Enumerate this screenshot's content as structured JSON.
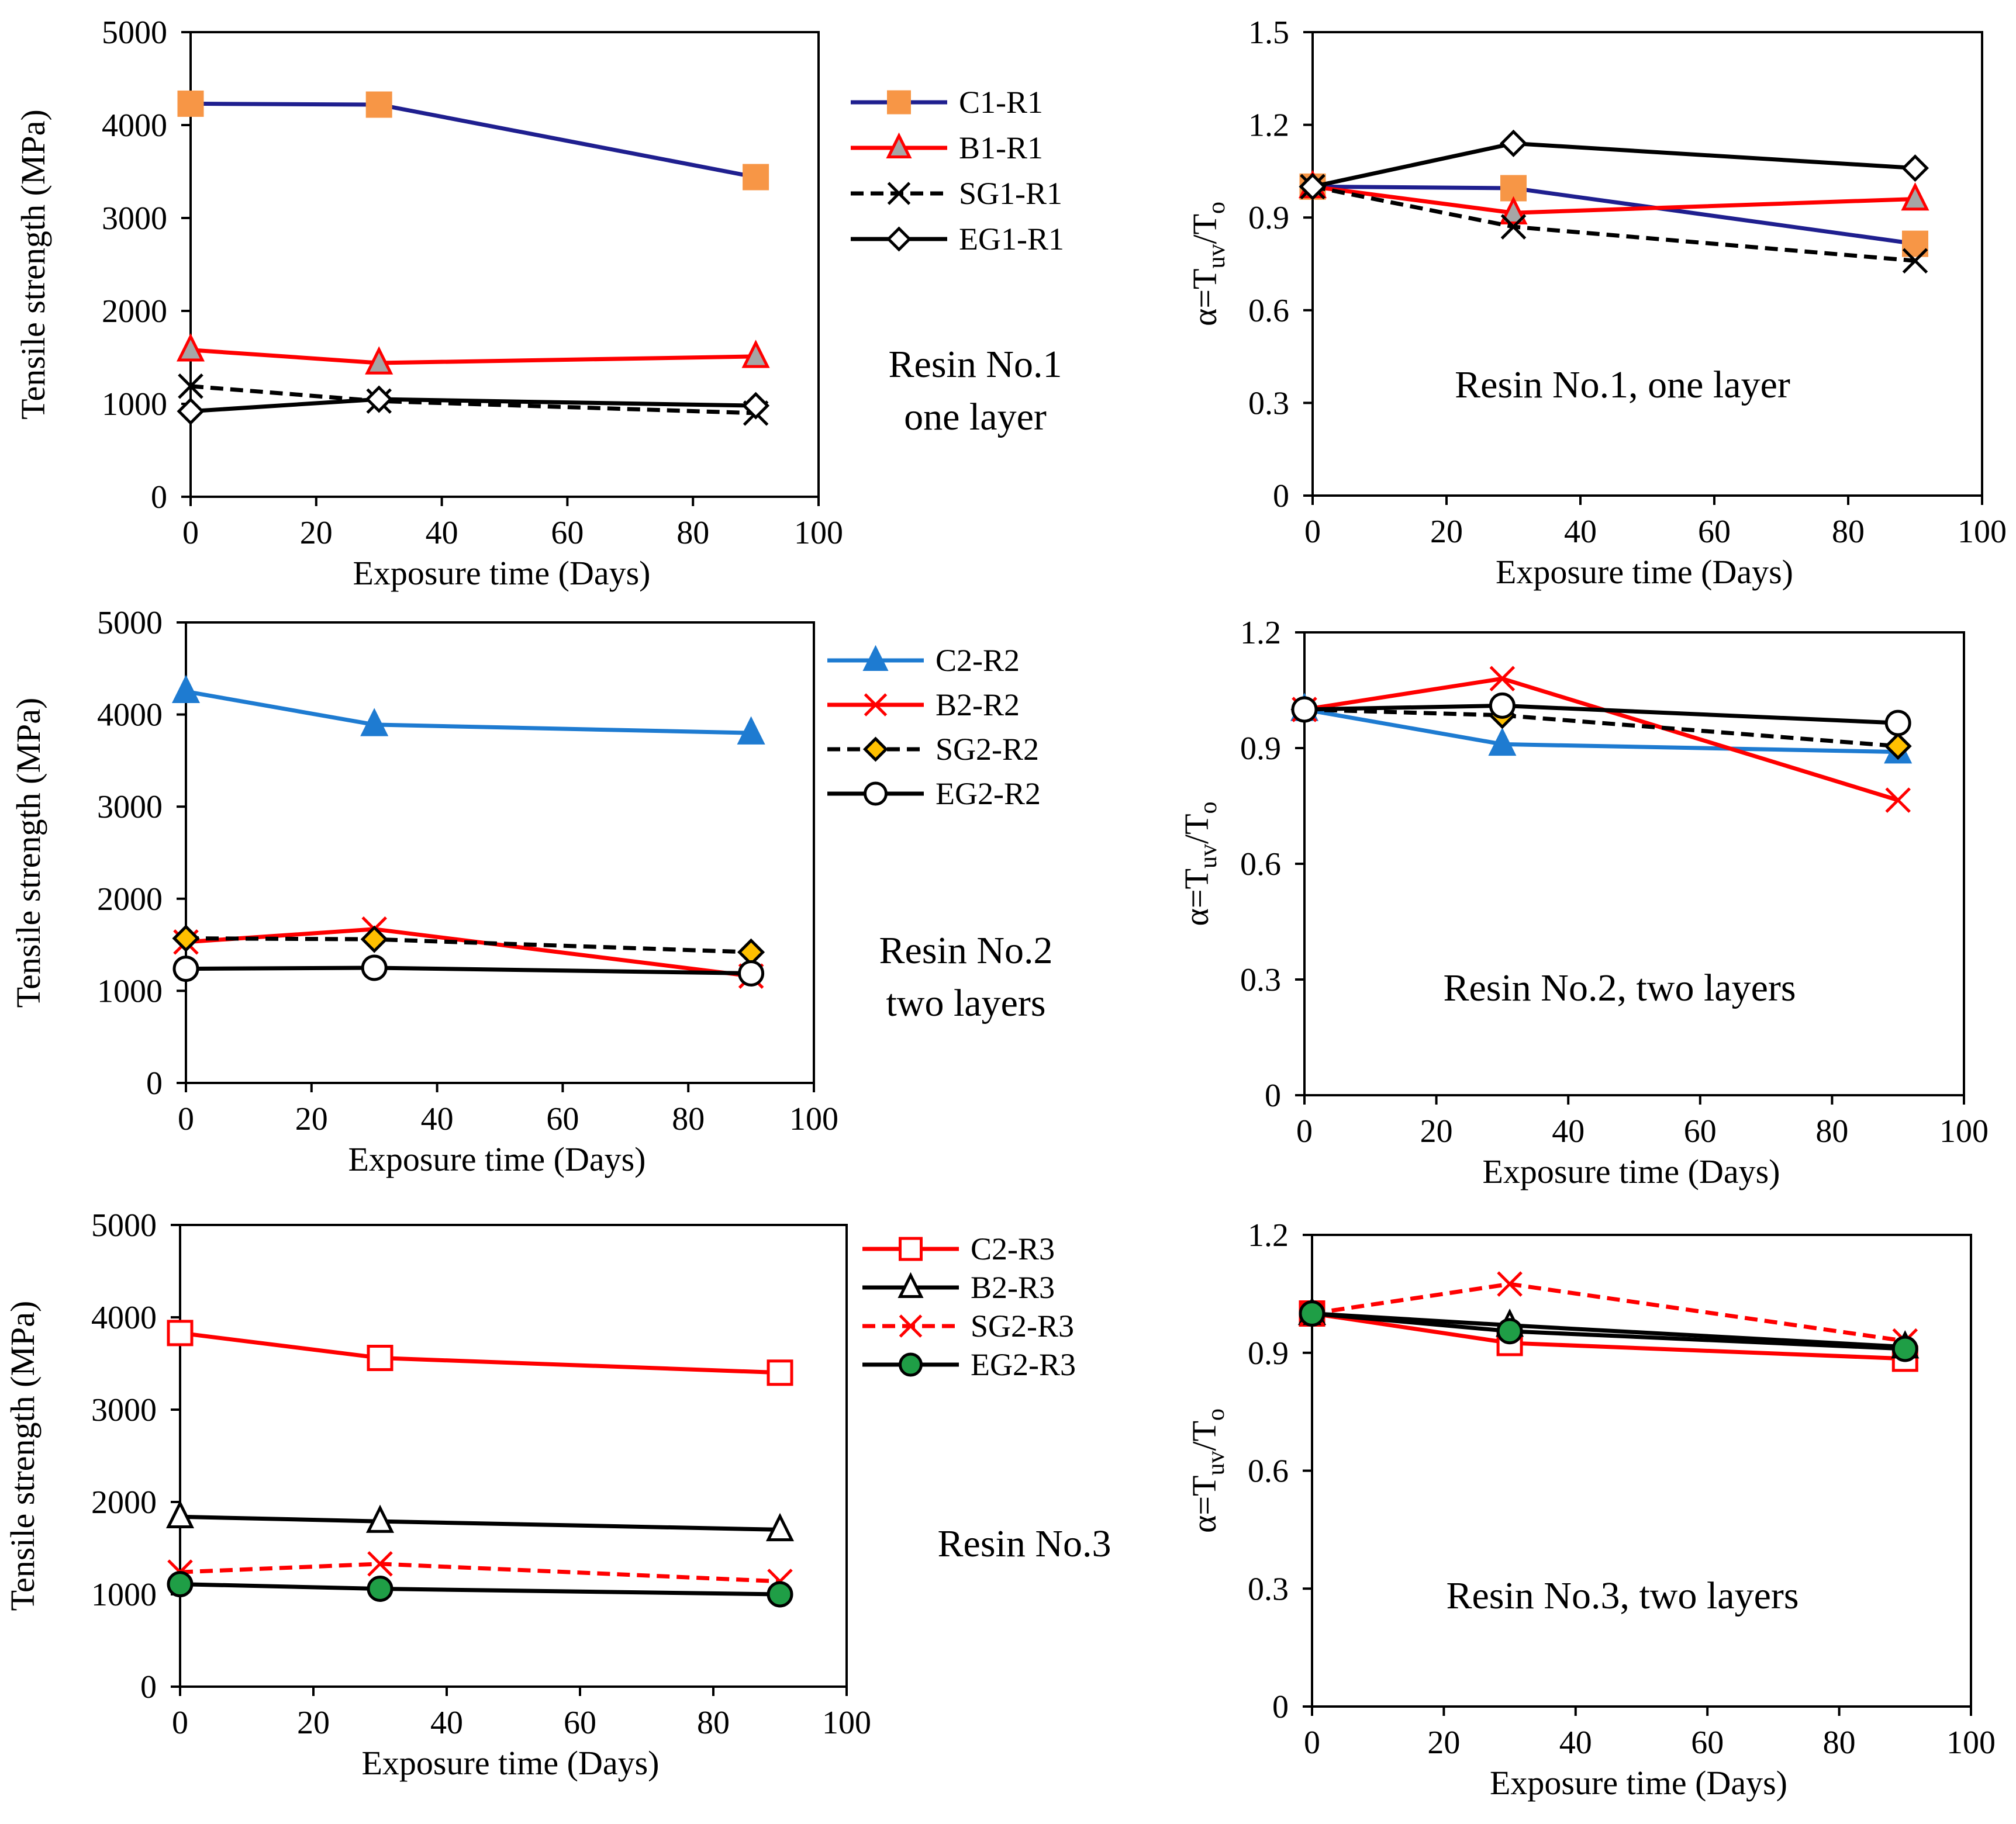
{
  "chart_data": [
    {
      "id": "p1",
      "type": "line",
      "ylabel": "Tensile strength (MPa)",
      "xlabel": "Exposure time (Days)",
      "xlim": [
        0,
        100
      ],
      "ylim": [
        0,
        5000
      ],
      "xticks": [
        0,
        20,
        40,
        60,
        80,
        100
      ],
      "yticks": [
        0,
        1000,
        2000,
        3000,
        4000,
        5000
      ],
      "note": [
        "Resin No.1",
        "one layer"
      ],
      "series": [
        {
          "name": "C1-R1",
          "color": "#1f1f8f",
          "dash": "",
          "marker": "square",
          "mfill": "#f79646",
          "mstroke": "#f79646",
          "x": [
            0,
            30,
            90
          ],
          "y": [
            4230,
            4220,
            3440
          ]
        },
        {
          "name": "B1-R1",
          "color": "#ff0000",
          "dash": "",
          "marker": "triangle",
          "mfill": "#a6a6a6",
          "mstroke": "#ff0000",
          "x": [
            0,
            30,
            90
          ],
          "y": [
            1580,
            1440,
            1510
          ]
        },
        {
          "name": "SG1-R1",
          "color": "#000000",
          "dash": "dashed",
          "marker": "x",
          "mfill": "none",
          "mstroke": "#000000",
          "x": [
            0,
            30,
            90
          ],
          "y": [
            1190,
            1030,
            900
          ]
        },
        {
          "name": "EG1-R1",
          "color": "#000000",
          "dash": "",
          "marker": "diamond",
          "mfill": "#ffffff",
          "mstroke": "#000000",
          "x": [
            0,
            30,
            90
          ],
          "y": [
            920,
            1050,
            980
          ]
        }
      ]
    },
    {
      "id": "p2",
      "type": "line",
      "ylabel": "α=Tuv/To",
      "xlabel": "Exposure time (Days)",
      "xlim": [
        0,
        100
      ],
      "ylim": [
        0,
        1.5
      ],
      "xticks": [
        0,
        20,
        40,
        60,
        80,
        100
      ],
      "yticks": [
        0,
        0.3,
        0.6,
        0.9,
        1.2,
        1.5
      ],
      "note": [
        "Resin No.1, one layer"
      ],
      "series": [
        {
          "name": "C1-R1",
          "color": "#1f1f8f",
          "dash": "",
          "marker": "square",
          "mfill": "#f79646",
          "mstroke": "#f79646",
          "x": [
            0,
            30,
            90
          ],
          "y": [
            1.0,
            0.995,
            0.815
          ]
        },
        {
          "name": "B1-R1",
          "color": "#ff0000",
          "dash": "",
          "marker": "triangle",
          "mfill": "#a6a6a6",
          "mstroke": "#ff0000",
          "x": [
            0,
            30,
            90
          ],
          "y": [
            1.0,
            0.915,
            0.96
          ]
        },
        {
          "name": "SG1-R1",
          "color": "#000000",
          "dash": "dashed",
          "marker": "x",
          "mfill": "none",
          "mstroke": "#000000",
          "x": [
            0,
            30,
            90
          ],
          "y": [
            1.0,
            0.87,
            0.76
          ]
        },
        {
          "name": "EG1-R1",
          "color": "#000000",
          "dash": "",
          "marker": "diamond",
          "mfill": "#ffffff",
          "mstroke": "#000000",
          "x": [
            0,
            30,
            90
          ],
          "y": [
            1.0,
            1.14,
            1.06
          ]
        }
      ]
    },
    {
      "id": "p3",
      "type": "line",
      "ylabel": "Tensile strength (MPa)",
      "xlabel": "Exposure time (Days)",
      "xlim": [
        0,
        100
      ],
      "ylim": [
        0,
        5000
      ],
      "xticks": [
        0,
        20,
        40,
        60,
        80,
        100
      ],
      "yticks": [
        0,
        1000,
        2000,
        3000,
        4000,
        5000
      ],
      "note": [
        "Resin No.2",
        "two layers"
      ],
      "series": [
        {
          "name": "C2-R2",
          "color": "#1e7bd1",
          "dash": "",
          "marker": "triangle",
          "mfill": "#1e7bd1",
          "mstroke": "#1e7bd1",
          "x": [
            0,
            30,
            90
          ],
          "y": [
            4250,
            3890,
            3800
          ]
        },
        {
          "name": "B2-R2",
          "color": "#ff0000",
          "dash": "",
          "marker": "x",
          "mfill": "none",
          "mstroke": "#ff0000",
          "x": [
            0,
            30,
            90
          ],
          "y": [
            1530,
            1670,
            1160
          ]
        },
        {
          "name": "SG2-R2",
          "color": "#000000",
          "dash": "dashed",
          "marker": "diamond",
          "mfill": "#ffc000",
          "mstroke": "#000000",
          "x": [
            0,
            30,
            90
          ],
          "y": [
            1570,
            1560,
            1420
          ]
        },
        {
          "name": "EG2-R2",
          "color": "#000000",
          "dash": "",
          "marker": "circle",
          "mfill": "#ffffff",
          "mstroke": "#000000",
          "x": [
            0,
            30,
            90
          ],
          "y": [
            1240,
            1250,
            1190
          ]
        }
      ]
    },
    {
      "id": "p4",
      "type": "line",
      "ylabel": "α=Tuv/To",
      "xlabel": "Exposure time (Days)",
      "xlim": [
        0,
        100
      ],
      "ylim": [
        0,
        1.2
      ],
      "xticks": [
        0,
        20,
        40,
        60,
        80,
        100
      ],
      "yticks": [
        0,
        0.3,
        0.6,
        0.9,
        1.2
      ],
      "note": [
        "Resin No.2, two layers"
      ],
      "series": [
        {
          "name": "C2-R2",
          "color": "#1e7bd1",
          "dash": "",
          "marker": "triangle",
          "mfill": "#1e7bd1",
          "mstroke": "#1e7bd1",
          "x": [
            0,
            30,
            90
          ],
          "y": [
            1.0,
            0.91,
            0.89
          ]
        },
        {
          "name": "B2-R2",
          "color": "#ff0000",
          "dash": "",
          "marker": "x",
          "mfill": "none",
          "mstroke": "#ff0000",
          "x": [
            0,
            30,
            90
          ],
          "y": [
            1.0,
            1.08,
            0.765
          ]
        },
        {
          "name": "SG2-R2",
          "color": "#000000",
          "dash": "dashed",
          "marker": "diamond",
          "mfill": "#ffc000",
          "mstroke": "#000000",
          "x": [
            0,
            30,
            90
          ],
          "y": [
            1.0,
            0.985,
            0.905
          ]
        },
        {
          "name": "EG2-R2",
          "color": "#000000",
          "dash": "",
          "marker": "circle",
          "mfill": "#ffffff",
          "mstroke": "#000000",
          "x": [
            0,
            30,
            90
          ],
          "y": [
            1.0,
            1.01,
            0.965
          ]
        }
      ]
    },
    {
      "id": "p5",
      "type": "line",
      "ylabel": "Tensile strength (MPa)",
      "xlabel": "Exposure time (Days)",
      "xlim": [
        0,
        100
      ],
      "ylim": [
        0,
        5000
      ],
      "xticks": [
        0,
        20,
        40,
        60,
        80,
        100
      ],
      "yticks": [
        0,
        1000,
        2000,
        3000,
        4000,
        5000
      ],
      "note": [
        "Resin No.3"
      ],
      "series": [
        {
          "name": "C2-R3",
          "color": "#ff0000",
          "dash": "",
          "marker": "square",
          "mfill": "#ffffff",
          "mstroke": "#ff0000",
          "x": [
            0,
            30,
            90
          ],
          "y": [
            3830,
            3560,
            3400
          ]
        },
        {
          "name": "B2-R3",
          "color": "#000000",
          "dash": "",
          "marker": "triangle",
          "mfill": "#ffffff",
          "mstroke": "#000000",
          "x": [
            0,
            30,
            90
          ],
          "y": [
            1840,
            1790,
            1700
          ]
        },
        {
          "name": "SG2-R3",
          "color": "#ff0000",
          "dash": "dashed",
          "marker": "x",
          "mfill": "none",
          "mstroke": "#ff0000",
          "x": [
            0,
            30,
            90
          ],
          "y": [
            1240,
            1330,
            1140
          ]
        },
        {
          "name": "EG2-R3",
          "color": "#000000",
          "dash": "",
          "marker": "circle",
          "mfill": "#1f9e46",
          "mstroke": "#000000",
          "x": [
            0,
            30,
            90
          ],
          "y": [
            1110,
            1060,
            1000
          ]
        }
      ]
    },
    {
      "id": "p6",
      "type": "line",
      "ylabel": "α=Tuv/To",
      "xlabel": "Exposure time (Days)",
      "xlim": [
        0,
        100
      ],
      "ylim": [
        0,
        1.2
      ],
      "xticks": [
        0,
        20,
        40,
        60,
        80,
        100
      ],
      "yticks": [
        0,
        0.3,
        0.6,
        0.9,
        1.2
      ],
      "note": [
        "Resin No.3, two layers"
      ],
      "series": [
        {
          "name": "C2-R3",
          "color": "#ff0000",
          "dash": "",
          "marker": "square",
          "mfill": "#ffffff",
          "mstroke": "#ff0000",
          "x": [
            0,
            30,
            90
          ],
          "y": [
            1.0,
            0.925,
            0.885
          ]
        },
        {
          "name": "B2-R3",
          "color": "#000000",
          "dash": "",
          "marker": "triangle",
          "mfill": "#ffffff",
          "mstroke": "#000000",
          "x": [
            0,
            30,
            90
          ],
          "y": [
            1.0,
            0.97,
            0.915
          ]
        },
        {
          "name": "SG2-R3",
          "color": "#ff0000",
          "dash": "dashed",
          "marker": "x",
          "mfill": "none",
          "mstroke": "#ff0000",
          "x": [
            0,
            30,
            90
          ],
          "y": [
            1.0,
            1.075,
            0.93
          ]
        },
        {
          "name": "EG2-R3",
          "color": "#000000",
          "dash": "",
          "marker": "circle",
          "mfill": "#1f9e46",
          "mstroke": "#000000",
          "x": [
            0,
            30,
            90
          ],
          "y": [
            1.0,
            0.955,
            0.91
          ]
        }
      ]
    }
  ]
}
